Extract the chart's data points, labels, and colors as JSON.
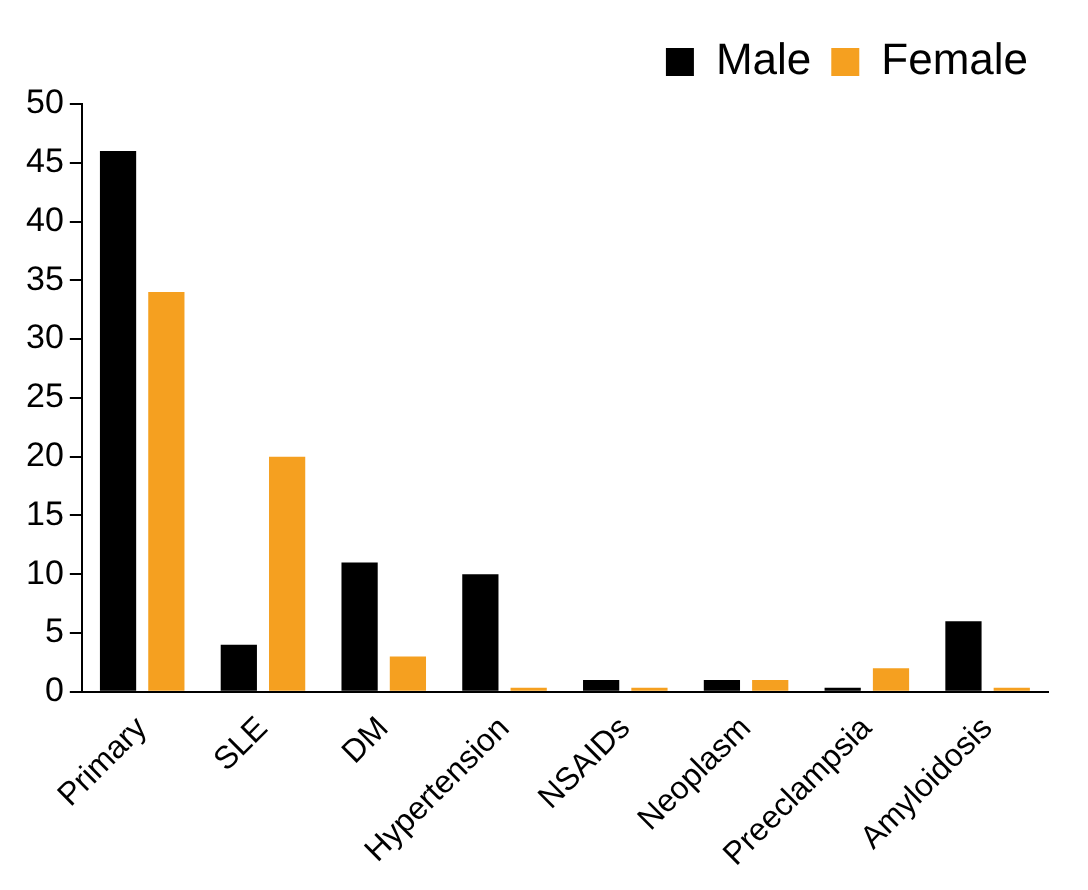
{
  "chart_data": {
    "type": "bar",
    "categories": [
      "Primary",
      "SLE",
      "DM",
      "Hypertension",
      "NSAIDs",
      "Neoplasm",
      "Preeclampsia",
      "Amyloidosis"
    ],
    "series": [
      {
        "name": "Male",
        "color": "#000000",
        "values": [
          46,
          4,
          11,
          10,
          1,
          1,
          0,
          6
        ]
      },
      {
        "name": "Female",
        "color": "#f5a020",
        "values": [
          34,
          20,
          3,
          0,
          0,
          1,
          2,
          0
        ]
      }
    ],
    "ylim": [
      0,
      50
    ],
    "yticks": [
      0,
      5,
      10,
      15,
      20,
      25,
      30,
      35,
      40,
      45,
      50
    ],
    "grid": false,
    "legend": "top right"
  }
}
